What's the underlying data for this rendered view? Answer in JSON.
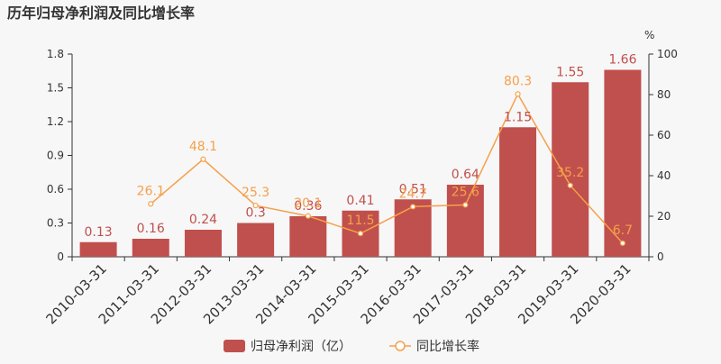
{
  "chart_data": {
    "type": "bar",
    "title": "历年归母净利润及同比增长率",
    "categories": [
      "2010-03-31",
      "2011-03-31",
      "2012-03-31",
      "2013-03-31",
      "2014-03-31",
      "2015-03-31",
      "2016-03-31",
      "2017-03-31",
      "2018-03-31",
      "2019-03-31",
      "2020-03-31"
    ],
    "y_left": {
      "ticks": [
        "0",
        "0.3",
        "0.6",
        "0.9",
        "1.2",
        "1.5",
        "1.8"
      ],
      "ylim": [
        0,
        1.8
      ]
    },
    "y_right": {
      "unit": "%",
      "ticks": [
        "0",
        "20",
        "40",
        "60",
        "80",
        "100"
      ],
      "ylim": [
        0,
        100
      ]
    },
    "grid": false,
    "legend_position": "bottom",
    "colors": {
      "bar": "#c0504d",
      "line": "#f5a04a",
      "bar_label": "#c0504d",
      "line_label": "#f5a04a"
    },
    "series": [
      {
        "name": "归母净利润（亿）",
        "type": "bar",
        "axis": "left",
        "values": [
          0.13,
          0.16,
          0.24,
          0.3,
          0.36,
          0.41,
          0.51,
          0.64,
          1.15,
          1.55,
          1.66
        ],
        "labels": [
          "0.13",
          "0.16",
          "0.24",
          "0.3",
          "0.36",
          "0.41",
          "0.51",
          "0.64",
          "1.15",
          "1.55",
          "1.66"
        ]
      },
      {
        "name": "同比增长率",
        "type": "line",
        "axis": "right",
        "values": [
          null,
          26.1,
          48.1,
          25.3,
          20.1,
          11.5,
          24.7,
          25.6,
          80.3,
          35.2,
          6.7
        ],
        "labels": [
          "",
          "26.1",
          "48.1",
          "25.3",
          "20.1",
          "11.5",
          "24.7",
          "25.6",
          "80.3",
          "35.2",
          "6.7"
        ]
      }
    ]
  }
}
